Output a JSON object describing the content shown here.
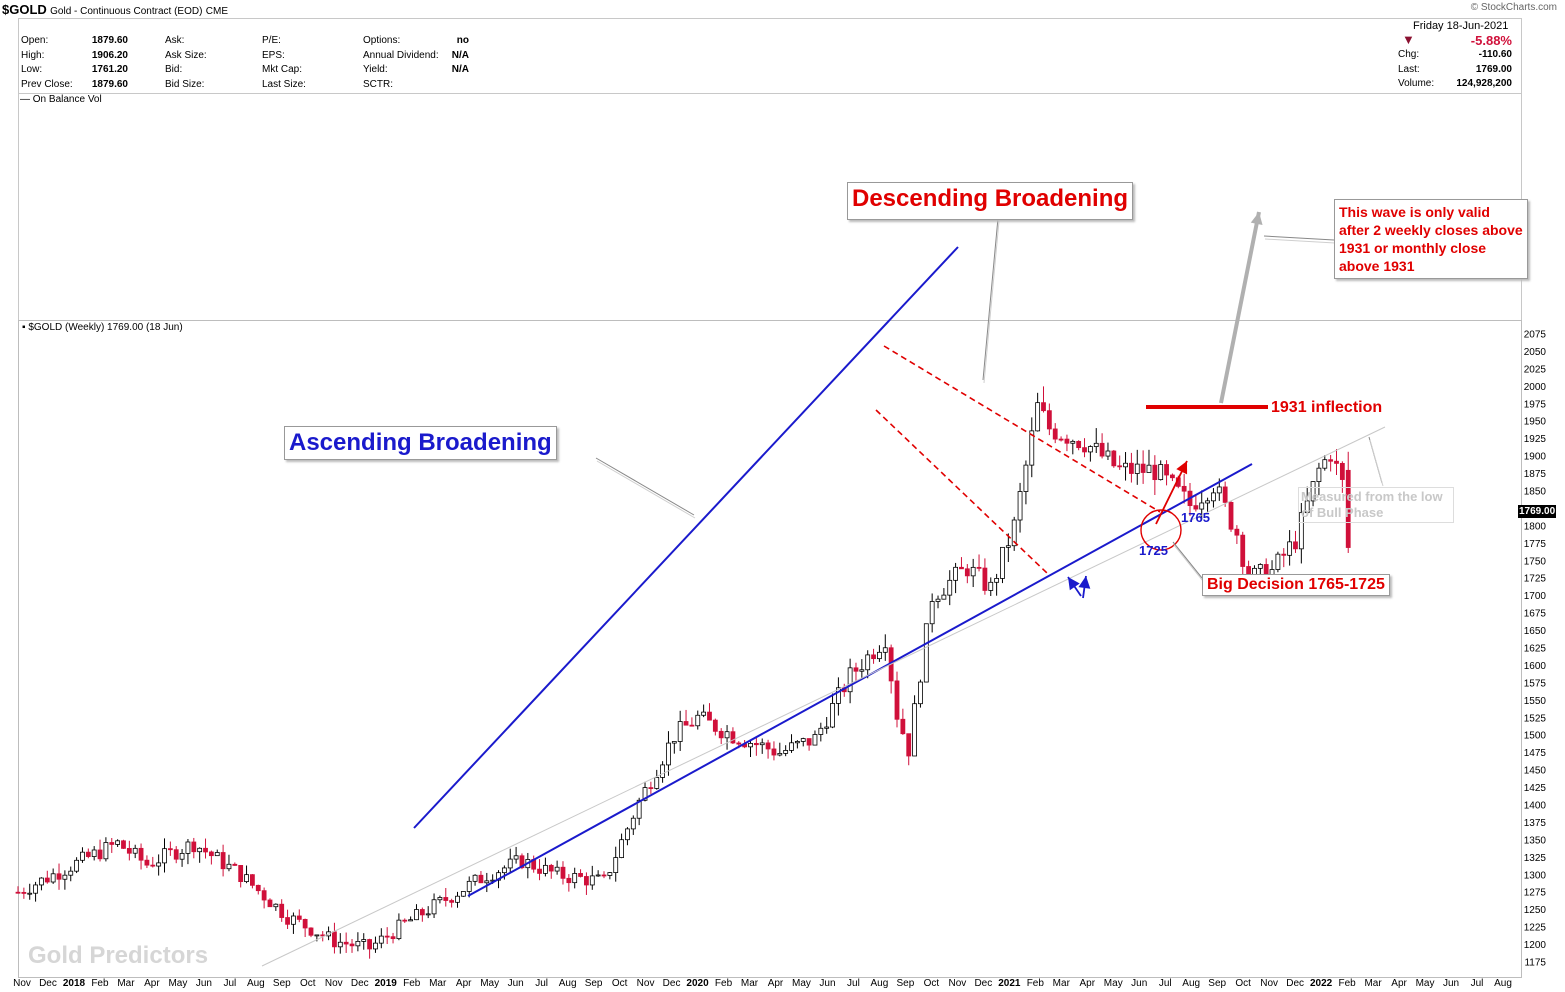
{
  "header": {
    "symbol": "$GOLD",
    "description": "Gold - Continuous Contract (EOD)",
    "exchange": "CME",
    "brand": "© StockCharts.com"
  },
  "quote": {
    "left": [
      {
        "label": "Open:",
        "value": "1879.60"
      },
      {
        "label": "High:",
        "value": "1906.20"
      },
      {
        "label": "Low:",
        "value": "1761.20"
      },
      {
        "label": "Prev Close:",
        "value": "1879.60"
      }
    ],
    "mid1": [
      "Ask:",
      "Ask Size:",
      "Bid:",
      "Bid Size:"
    ],
    "mid2": [
      "P/E:",
      "EPS:",
      "Mkt Cap:",
      "Last Size:"
    ],
    "mid3": [
      {
        "label": "Options:",
        "value": "no"
      },
      {
        "label": "Annual Dividend:",
        "value": "N/A"
      },
      {
        "label": "Yield:",
        "value": "N/A"
      },
      {
        "label": "SCTR:",
        "value": ""
      }
    ],
    "date": "Friday  18-Jun-2021",
    "change_pct": "-5.88%",
    "right": [
      {
        "label": "Chg:",
        "value": "-110.60"
      },
      {
        "label": "Last:",
        "value": "1769.00"
      },
      {
        "label": "Volume:",
        "value": "124,928,200"
      }
    ]
  },
  "obv_label": "— On Balance Vol",
  "main_label": "$GOLD (Weekly) 1769.00 (18 Jun)",
  "colors": {
    "up": "#000000",
    "down": "#d0103a",
    "trend": "#1a1acc",
    "red": "#e00000",
    "grey": "#b0b0b0",
    "price_tag": "#000000"
  },
  "chart_data": {
    "type": "candlestick",
    "timeframe": "weekly",
    "ylim": [
      1160,
      2090
    ],
    "yticks": [
      1175,
      1200,
      1225,
      1250,
      1275,
      1300,
      1325,
      1350,
      1375,
      1400,
      1425,
      1450,
      1475,
      1500,
      1525,
      1550,
      1575,
      1600,
      1625,
      1650,
      1675,
      1700,
      1725,
      1750,
      1775,
      1800,
      1825,
      1850,
      1875,
      1900,
      1925,
      1950,
      1975,
      2000,
      2025,
      2050,
      2075
    ],
    "last_price_tag": "1769.00",
    "x_labels": [
      {
        "t": "Nov",
        "b": false
      },
      {
        "t": "Dec",
        "b": false
      },
      {
        "t": "2018",
        "b": true
      },
      {
        "t": "Feb",
        "b": false
      },
      {
        "t": "Mar",
        "b": false
      },
      {
        "t": "Apr",
        "b": false
      },
      {
        "t": "May",
        "b": false
      },
      {
        "t": "Jun",
        "b": false
      },
      {
        "t": "Jul",
        "b": false
      },
      {
        "t": "Aug",
        "b": false
      },
      {
        "t": "Sep",
        "b": false
      },
      {
        "t": "Oct",
        "b": false
      },
      {
        "t": "Nov",
        "b": false
      },
      {
        "t": "Dec",
        "b": false
      },
      {
        "t": "2019",
        "b": true
      },
      {
        "t": "Feb",
        "b": false
      },
      {
        "t": "Mar",
        "b": false
      },
      {
        "t": "Apr",
        "b": false
      },
      {
        "t": "May",
        "b": false
      },
      {
        "t": "Jun",
        "b": false
      },
      {
        "t": "Jul",
        "b": false
      },
      {
        "t": "Aug",
        "b": false
      },
      {
        "t": "Sep",
        "b": false
      },
      {
        "t": "Oct",
        "b": false
      },
      {
        "t": "Nov",
        "b": false
      },
      {
        "t": "Dec",
        "b": false
      },
      {
        "t": "2020",
        "b": true
      },
      {
        "t": "Feb",
        "b": false
      },
      {
        "t": "Mar",
        "b": false
      },
      {
        "t": "Apr",
        "b": false
      },
      {
        "t": "May",
        "b": false
      },
      {
        "t": "Jun",
        "b": false
      },
      {
        "t": "Jul",
        "b": false
      },
      {
        "t": "Aug",
        "b": false
      },
      {
        "t": "Sep",
        "b": false
      },
      {
        "t": "Oct",
        "b": false
      },
      {
        "t": "Nov",
        "b": false
      },
      {
        "t": "Dec",
        "b": false
      },
      {
        "t": "2021",
        "b": true
      },
      {
        "t": "Feb",
        "b": false
      },
      {
        "t": "Mar",
        "b": false
      },
      {
        "t": "Apr",
        "b": false
      },
      {
        "t": "May",
        "b": false
      },
      {
        "t": "Jun",
        "b": false
      },
      {
        "t": "Jul",
        "b": false
      },
      {
        "t": "Aug",
        "b": false
      },
      {
        "t": "Sep",
        "b": false
      },
      {
        "t": "Oct",
        "b": false
      },
      {
        "t": "Nov",
        "b": false
      },
      {
        "t": "Dec",
        "b": false
      },
      {
        "t": "2022",
        "b": true
      },
      {
        "t": "Feb",
        "b": false
      },
      {
        "t": "Mar",
        "b": false
      },
      {
        "t": "Apr",
        "b": false
      },
      {
        "t": "May",
        "b": false
      },
      {
        "t": "Jun",
        "b": false
      },
      {
        "t": "Jul",
        "b": false
      },
      {
        "t": "Aug",
        "b": false
      }
    ],
    "close_anchors": [
      [
        0,
        1275
      ],
      [
        6,
        1300
      ],
      [
        12,
        1325
      ],
      [
        17,
        1345
      ],
      [
        22,
        1315
      ],
      [
        30,
        1345
      ],
      [
        38,
        1300
      ],
      [
        46,
        1240
      ],
      [
        54,
        1205
      ],
      [
        60,
        1195
      ],
      [
        66,
        1230
      ],
      [
        72,
        1260
      ],
      [
        80,
        1300
      ],
      [
        86,
        1320
      ],
      [
        92,
        1300
      ],
      [
        100,
        1290
      ],
      [
        106,
        1405
      ],
      [
        112,
        1500
      ],
      [
        116,
        1525
      ],
      [
        122,
        1500
      ],
      [
        130,
        1475
      ],
      [
        136,
        1495
      ],
      [
        142,
        1585
      ],
      [
        148,
        1640
      ],
      [
        150,
        1530
      ],
      [
        152,
        1480
      ],
      [
        156,
        1700
      ],
      [
        162,
        1740
      ],
      [
        166,
        1710
      ],
      [
        170,
        1800
      ],
      [
        174,
        1970
      ],
      [
        176,
        1940
      ],
      [
        182,
        1920
      ],
      [
        188,
        1880
      ],
      [
        194,
        1880
      ],
      [
        200,
        1830
      ],
      [
        204,
        1860
      ],
      [
        208,
        1790
      ],
      [
        210,
        1725
      ],
      [
        214,
        1735
      ],
      [
        218,
        1780
      ],
      [
        222,
        1880
      ],
      [
        224,
        1905
      ],
      [
        226,
        1860
      ],
      [
        227,
        1769
      ]
    ],
    "annotations": {
      "ascending": "Ascending Broadening",
      "descending": "Descending Broadening",
      "wave_note": "This wave is only valid after 2 weekly closes above 1931 or monthly close above 1931",
      "inflection": "1931 inflection",
      "measured": "Measured from the low of Bull Phase",
      "level_1765": "1765",
      "level_1725": "1725",
      "decision": "Big Decision 1765-1725",
      "watermark": "Gold Predictors"
    }
  }
}
